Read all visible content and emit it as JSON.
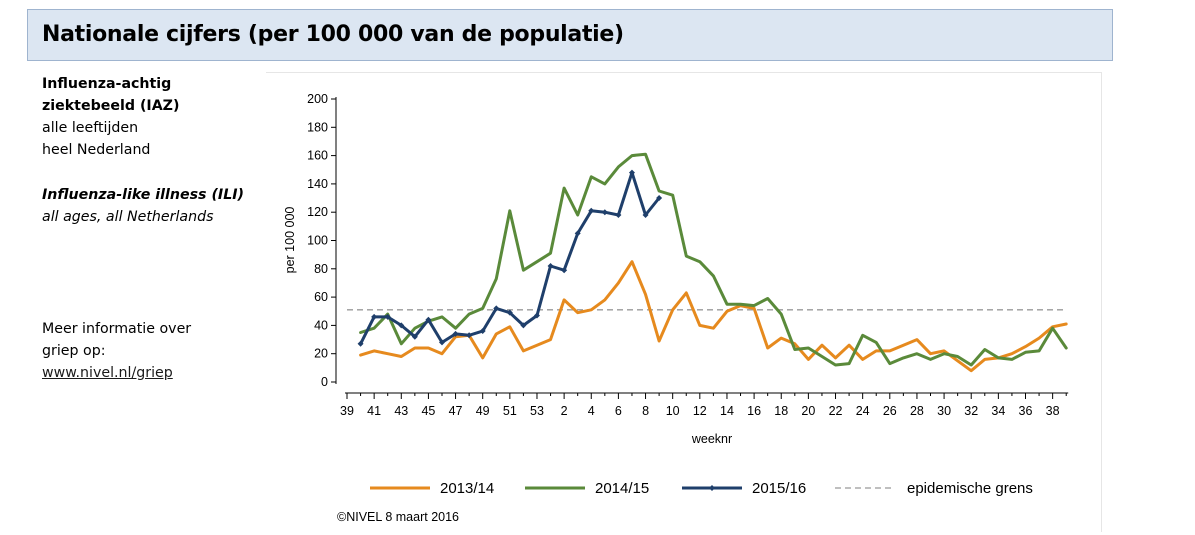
{
  "header": {
    "title": "Nationale cijfers (per 100 000 van de populatie)"
  },
  "sidebar": {
    "nl_title_line1": "Influenza-achtig",
    "nl_title_line2": "ziektebeeld (IAZ)",
    "nl_line3": "alle leeftijden",
    "nl_line4": "heel Nederland",
    "en_title": "Influenza-like illness (ILI)",
    "en_line2": "all ages, all Netherlands",
    "info_line1": "Meer informatie over",
    "info_line2": "griep op:",
    "info_link": "www.nivel.nl/griep"
  },
  "chart_data": {
    "type": "line",
    "title": "",
    "ylabel": "per 100 000",
    "xlabel": "weeknr",
    "ylim": [
      0,
      200
    ],
    "yticks": [
      0,
      20,
      40,
      60,
      80,
      100,
      120,
      140,
      160,
      180,
      200
    ],
    "x": [
      39,
      40,
      41,
      42,
      43,
      44,
      45,
      46,
      47,
      48,
      49,
      50,
      51,
      52,
      53,
      1,
      2,
      3,
      4,
      5,
      6,
      7,
      8,
      9,
      10,
      11,
      12,
      13,
      14,
      15,
      16,
      17,
      18,
      19,
      20,
      21,
      22,
      23,
      24,
      25,
      26,
      27,
      28,
      29,
      30,
      31,
      32,
      33,
      34,
      35,
      36,
      37,
      38,
      39
    ],
    "xtick_labels": [
      "39",
      "41",
      "43",
      "45",
      "47",
      "49",
      "51",
      "53",
      "2",
      "4",
      "6",
      "8",
      "10",
      "12",
      "14",
      "16",
      "18",
      "20",
      "22",
      "24",
      "26",
      "28",
      "30",
      "32",
      "34",
      "36",
      "38"
    ],
    "series": [
      {
        "name": "2013/14",
        "color": "#e68a1e",
        "marker": false,
        "values": [
          null,
          19,
          22,
          20,
          18,
          24,
          24,
          20,
          32,
          33,
          17,
          34,
          39,
          22,
          26,
          30,
          58,
          49,
          51,
          58,
          70,
          85,
          62,
          29,
          51,
          63,
          40,
          38,
          50,
          54,
          52,
          24,
          31,
          27,
          16,
          26,
          17,
          26,
          16,
          22,
          22,
          26,
          30,
          20,
          22,
          15,
          8,
          16,
          17,
          20,
          25,
          31,
          39,
          41
        ]
      },
      {
        "name": "2014/15",
        "color": "#5a8a3a",
        "marker": false,
        "values": [
          null,
          35,
          38,
          48,
          27,
          38,
          43,
          46,
          38,
          48,
          52,
          73,
          121,
          79,
          85,
          91,
          137,
          118,
          145,
          140,
          152,
          160,
          161,
          135,
          132,
          89,
          85,
          75,
          55,
          55,
          54,
          59,
          48,
          23,
          24,
          18,
          12,
          13,
          33,
          28,
          13,
          17,
          20,
          16,
          20,
          18,
          12,
          23,
          17,
          16,
          21,
          22,
          38,
          24
        ]
      },
      {
        "name": "2015/16",
        "color": "#1f3f6b",
        "marker": true,
        "values": [
          null,
          27,
          46,
          46,
          40,
          32,
          44,
          28,
          34,
          33,
          36,
          52,
          49,
          40,
          47,
          82,
          79,
          105,
          121,
          120,
          118,
          148,
          118,
          130,
          null,
          null,
          null,
          null,
          null,
          null,
          null,
          null,
          null,
          null,
          null,
          null,
          null,
          null,
          null,
          null,
          null,
          null,
          null,
          null,
          null,
          null,
          null,
          null,
          null,
          null,
          null,
          null,
          null,
          null
        ]
      }
    ],
    "reference_line": {
      "name": "epidemische grens",
      "value": 51,
      "color": "#999999",
      "style": "dashed"
    },
    "legend": "bottom",
    "grid": false,
    "copyright": "©NIVEL 8 maart 2016"
  }
}
